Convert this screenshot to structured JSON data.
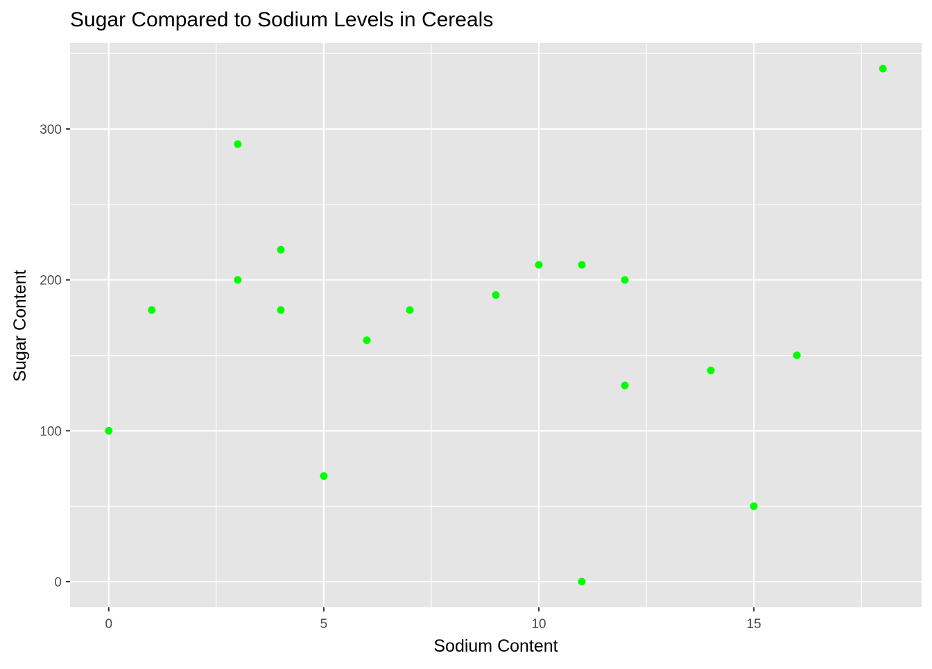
{
  "chart_data": {
    "type": "scatter",
    "title": "Sugar Compared to Sodium Levels in Cereals",
    "xlabel": "Sodium Content",
    "ylabel": "Sugar Content",
    "xlim": [
      -0.9,
      18.9
    ],
    "ylim": [
      -17,
      357
    ],
    "x_ticks": [
      0,
      5,
      10,
      15
    ],
    "x_tick_labels": [
      "0",
      "5",
      "10",
      "15"
    ],
    "x_minor_ticks": [
      2.5,
      7.5,
      12.5,
      17.5
    ],
    "y_ticks": [
      0,
      100,
      200,
      300
    ],
    "y_tick_labels": [
      "0",
      "100",
      "200",
      "300"
    ],
    "y_minor_ticks": [
      50,
      150,
      250,
      350
    ],
    "grid": true,
    "point_color": "#00ff00",
    "panel_background": "#e5e5e5",
    "grid_color": "#ffffff",
    "points": [
      {
        "x": 0,
        "y": 100
      },
      {
        "x": 1,
        "y": 180
      },
      {
        "x": 3,
        "y": 290
      },
      {
        "x": 3,
        "y": 200
      },
      {
        "x": 4,
        "y": 220
      },
      {
        "x": 4,
        "y": 180
      },
      {
        "x": 5,
        "y": 70
      },
      {
        "x": 6,
        "y": 160
      },
      {
        "x": 7,
        "y": 180
      },
      {
        "x": 9,
        "y": 190
      },
      {
        "x": 10,
        "y": 210
      },
      {
        "x": 11,
        "y": 210
      },
      {
        "x": 11,
        "y": 0
      },
      {
        "x": 12,
        "y": 200
      },
      {
        "x": 12,
        "y": 130
      },
      {
        "x": 14,
        "y": 140
      },
      {
        "x": 15,
        "y": 50
      },
      {
        "x": 16,
        "y": 150
      },
      {
        "x": 18,
        "y": 340
      }
    ]
  }
}
